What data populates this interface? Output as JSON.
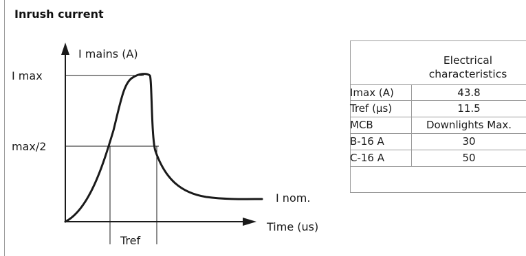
{
  "title": "Inrush current",
  "diagram": {
    "y_axis_label": "I mains (A)",
    "x_axis_label": "Time (us)",
    "imax_label": "I max",
    "half_label": "max/2",
    "nominal_label": "I nom.",
    "tref_label": "Tref"
  },
  "table": {
    "header_line1": "Electrical",
    "header_line2": "characteristics",
    "rows": [
      {
        "label": "Imax (A)",
        "value": "43.8"
      },
      {
        "label": "Tref (µs)",
        "value": "11.5"
      },
      {
        "label": "MCB",
        "value": "Downlights Max."
      },
      {
        "label": "B-16 A",
        "value": "30"
      },
      {
        "label": "C-16 A",
        "value": "50"
      }
    ]
  }
}
